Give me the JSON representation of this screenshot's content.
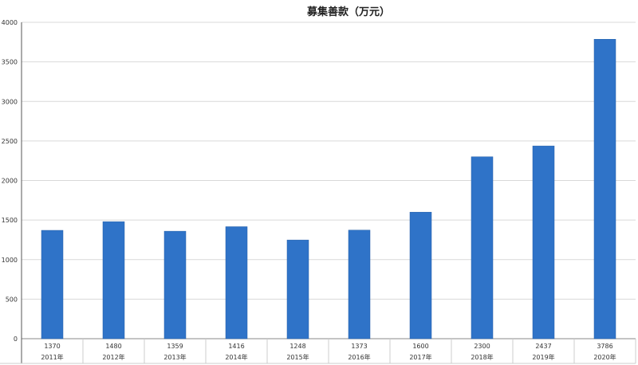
{
  "chart_data": {
    "type": "bar",
    "title": "募集善款（万元）",
    "categories": [
      "2011年",
      "2012年",
      "2013年",
      "2014年",
      "2015年",
      "2016年",
      "2017年",
      "2018年",
      "2019年",
      "2020年"
    ],
    "values": [
      1370,
      1480,
      1359,
      1416,
      1248,
      1373,
      1600,
      2300,
      2437,
      3786
    ],
    "value_labels": [
      "1370",
      "1480",
      "1359",
      "1416",
      "1248",
      "1373",
      "1600",
      "2300",
      "2437",
      "3786"
    ],
    "ylim": [
      0,
      4000
    ],
    "yticks": [
      0,
      500,
      1000,
      1500,
      2000,
      2500,
      3000,
      3500,
      4000
    ],
    "grid": true,
    "data_table": true,
    "bar_color": "#2F73C8"
  }
}
